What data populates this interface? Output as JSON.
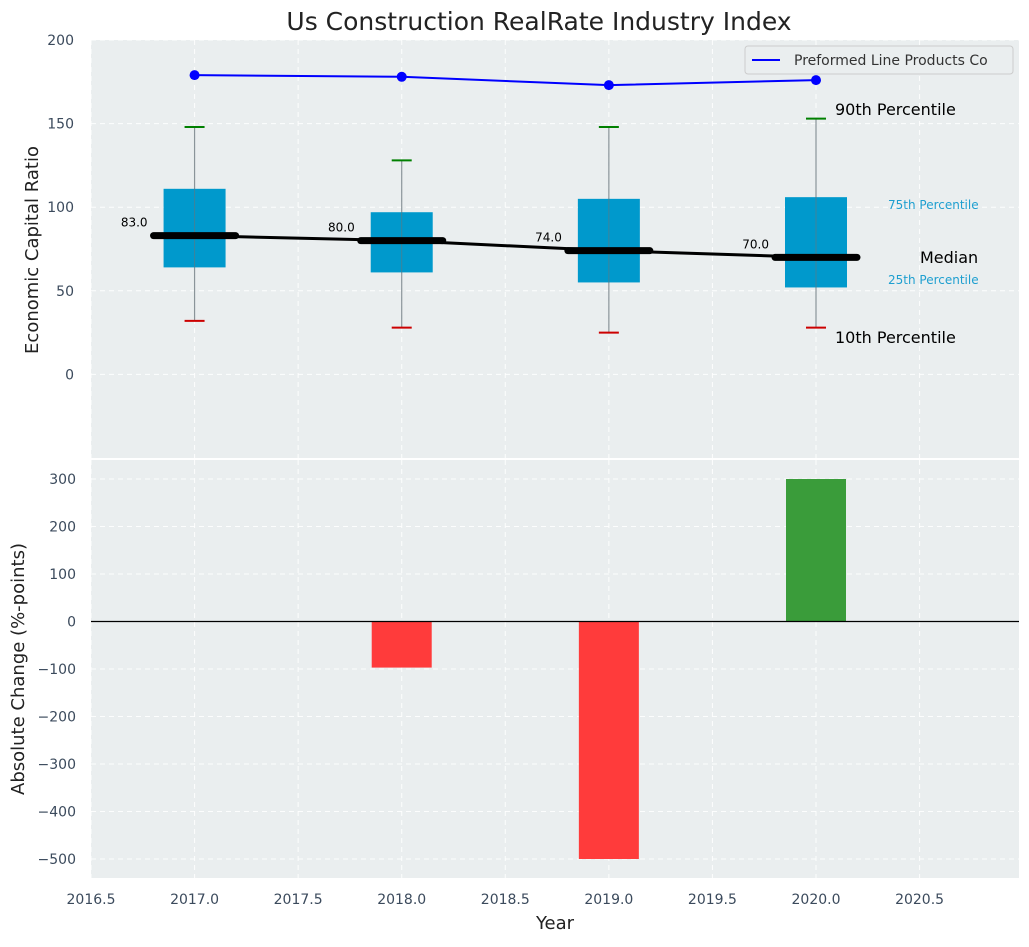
{
  "colors": {
    "panel_bg": "#EAEEEF",
    "grid": "#FFFFFF",
    "box_fill": "#0099CC",
    "line_color": "#0000FF",
    "p90_cap": "#008000",
    "p10_cap": "#CC0000",
    "positive_bar": "#3A9C3A",
    "negative_bar": "#FF3B3B",
    "axis_text": "#3B4A5C",
    "label_75_25": "#1E9FD0"
  },
  "chart_data": [
    {
      "type": "box",
      "title": "Us Construction RealRate Industry Index",
      "xlabel": "",
      "ylabel": "Economic Capital Ratio",
      "xlim": [
        2016.5,
        2020.98
      ],
      "ylim": [
        -50,
        200
      ],
      "yticks": [
        0,
        50,
        100,
        150,
        200
      ],
      "grid": true,
      "legend": {
        "position": "top-right",
        "entries": [
          "Preformed Line Products Co"
        ]
      },
      "categories": [
        2017,
        2018,
        2019,
        2020
      ],
      "p10": [
        32,
        28,
        25,
        28
      ],
      "q1": [
        64,
        61,
        55,
        52
      ],
      "median": [
        83,
        80,
        74,
        70
      ],
      "q3": [
        111,
        97,
        105,
        106
      ],
      "p90": [
        148,
        128,
        148,
        153
      ],
      "median_labels": [
        "83.0",
        "80.0",
        "74.0",
        "70.0"
      ],
      "series": [
        {
          "name": "Preformed Line Products Co",
          "x": [
            2017,
            2018,
            2019,
            2020
          ],
          "values": [
            179,
            178,
            173,
            176
          ]
        }
      ],
      "annotations": {
        "p90": "90th Percentile",
        "p75": "75th Percentile",
        "median": "Median",
        "p25": "25th Percentile",
        "p10": "10th Percentile"
      }
    },
    {
      "type": "bar",
      "xlabel": "Year",
      "ylabel": "Absolute Change (%-points)",
      "xlim": [
        2016.5,
        2020.98
      ],
      "ylim": [
        -540,
        340
      ],
      "yticks": [
        -500,
        -400,
        -300,
        -200,
        -100,
        0,
        100,
        200,
        300
      ],
      "xticks": [
        2016.5,
        2017.0,
        2017.5,
        2018.0,
        2018.5,
        2019.0,
        2019.5,
        2020.0,
        2020.5
      ],
      "grid": true,
      "categories": [
        2017,
        2018,
        2019,
        2020
      ],
      "values": [
        0,
        -97,
        -500,
        300
      ]
    }
  ]
}
